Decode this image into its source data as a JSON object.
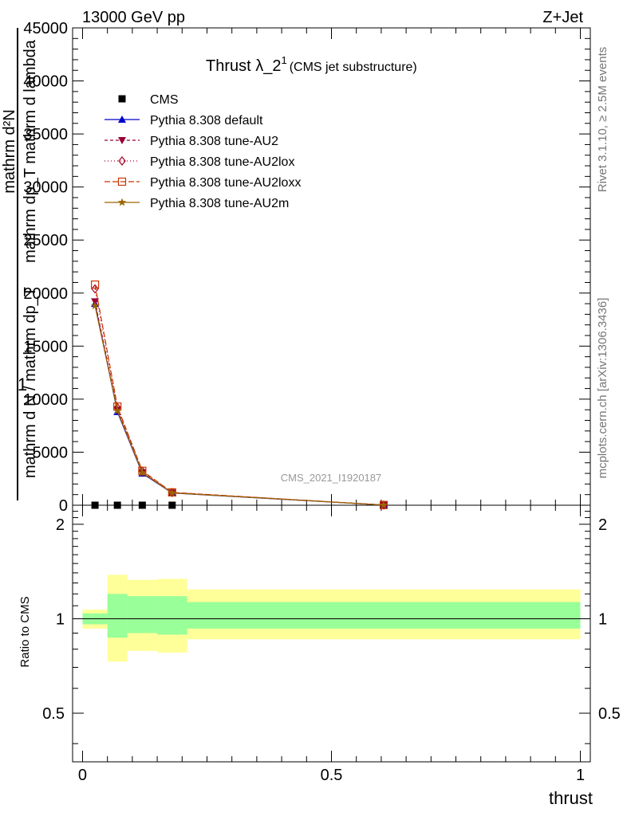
{
  "header": {
    "left": "13000 GeV pp",
    "right": "Z+Jet"
  },
  "side_text": {
    "rivet": "Rivet 3.1.10, ≥ 2.5M events",
    "mcplots": "mcplots.cern.ch [arXiv:1306.3436]"
  },
  "chart_data": {
    "type": "line",
    "title_main": "Thrust λ_2",
    "title_sup": "1",
    "title_sub": "(CMS jet substructure)",
    "watermark": "CMS_2021_I1920187",
    "xlabel": "thrust",
    "ylabel_numerator": "mathrm d²N",
    "ylabel_numerator_cont": "mathrm dp_T mathrm d lambda",
    "ylabel_one": "1",
    "ylabel_denominator": "mathrm d N / mathrm dp_T",
    "ylabel_ratio": "Ratio to CMS",
    "xlim": [
      -0.02,
      1.02
    ],
    "ylim": [
      0,
      45000
    ],
    "ratio_ylim": [
      0.35,
      2.3
    ],
    "x_ticks": [
      0,
      0.5,
      1
    ],
    "x_tick_labels": [
      "0",
      "0.5",
      "1"
    ],
    "y_ticks": [
      0,
      5000,
      10000,
      15000,
      20000,
      25000,
      30000,
      35000,
      40000,
      45000
    ],
    "y_tick_labels": [
      "0",
      "5000",
      "10000",
      "15000",
      "20000",
      "25000",
      "30000",
      "35000",
      "40000",
      "45000"
    ],
    "ratio_ticks": [
      0.5,
      1,
      2
    ],
    "ratio_tick_labels": [
      "0.5",
      "1",
      "2"
    ],
    "legend_position": "top-left",
    "bins": [
      [
        0,
        0.05
      ],
      [
        0.05,
        0.09
      ],
      [
        0.09,
        0.15
      ],
      [
        0.15,
        0.21
      ],
      [
        0.21,
        1.0
      ]
    ],
    "x": [
      0.025,
      0.07,
      0.12,
      0.18,
      0.605
    ],
    "series": [
      {
        "name": "CMS",
        "values": [
          0,
          0,
          0,
          0,
          0
        ],
        "color": "#000000",
        "marker": "square",
        "dash": ""
      },
      {
        "name": "Pythia 8.308 default",
        "values": [
          19000,
          8800,
          3000,
          1150,
          20
        ],
        "color": "#0000cc",
        "marker": "triangle-up",
        "dash": ""
      },
      {
        "name": "Pythia 8.308 tune-AU2",
        "values": [
          19200,
          9000,
          3100,
          1180,
          20
        ],
        "color": "#990033",
        "marker": "triangle-down",
        "dash": "4,3"
      },
      {
        "name": "Pythia 8.308 tune-AU2lox",
        "values": [
          20400,
          9200,
          3200,
          1200,
          20
        ],
        "color": "#aa0022",
        "marker": "diamond-open",
        "dash": "1,3"
      },
      {
        "name": "Pythia 8.308 tune-AU2loxx",
        "values": [
          20800,
          9300,
          3250,
          1210,
          20
        ],
        "color": "#cc3300",
        "marker": "square-open",
        "dash": "7,3"
      },
      {
        "name": "Pythia 8.308 tune-AU2m",
        "values": [
          18800,
          8900,
          3050,
          1160,
          20
        ],
        "color": "#996600",
        "marker": "star",
        "dash": ""
      }
    ],
    "ratio_bands": {
      "yellow": [
        [
          0.93,
          1.07
        ],
        [
          0.73,
          1.38
        ],
        [
          0.79,
          1.33
        ],
        [
          0.78,
          1.34
        ],
        [
          0.86,
          1.24
        ]
      ],
      "green": [
        [
          0.96,
          1.04
        ],
        [
          0.87,
          1.2
        ],
        [
          0.9,
          1.18
        ],
        [
          0.89,
          1.18
        ],
        [
          0.93,
          1.13
        ]
      ],
      "yellow_color": "#ffff99",
      "green_color": "#99ff99"
    }
  }
}
